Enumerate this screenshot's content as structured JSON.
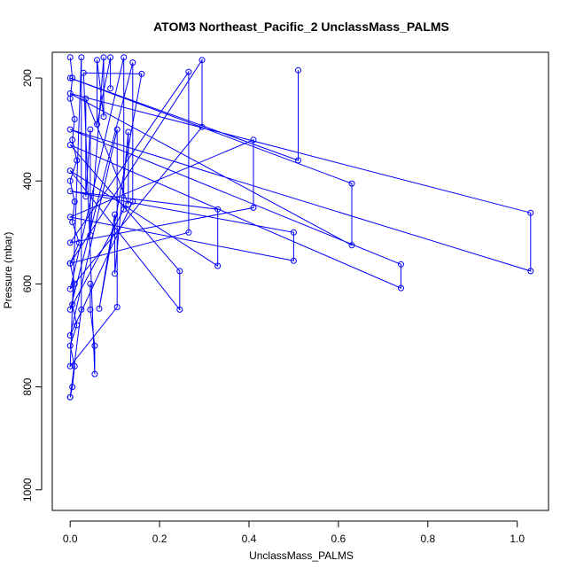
{
  "chart_data": {
    "type": "scatter",
    "title": "ATOM3 Northeast_Pacific_2 UnclassMass_PALMS",
    "xlabel": "UnclassMass_PALMS",
    "ylabel": "Pressure (mbar)",
    "xlim": [
      -0.04,
      1.07
    ],
    "ylim": [
      1040,
      150
    ],
    "y_reversed": true,
    "x_ticks": [
      0.0,
      0.2,
      0.4,
      0.6,
      0.8,
      1.0
    ],
    "x_tick_labels": [
      "0.0",
      "0.2",
      "0.4",
      "0.6",
      "0.8",
      "1.0"
    ],
    "y_ticks": [
      200,
      400,
      600,
      800,
      1000
    ],
    "y_tick_labels": [
      "200",
      "400",
      "600",
      "800",
      "1000"
    ],
    "grid": false,
    "legend": "none",
    "marker": "open-circle",
    "connect_points": true,
    "color": "#0000ff",
    "series": [
      {
        "points": [
          [
            0.51,
            185
          ],
          [
            0.51,
            360
          ],
          [
            0.0,
            200
          ],
          [
            0.63,
            405
          ],
          [
            0.63,
            525
          ],
          [
            0.0,
            230
          ],
          [
            1.03,
            462
          ],
          [
            1.03,
            575
          ],
          [
            0.0,
            300
          ],
          [
            0.74,
            562
          ],
          [
            0.74,
            608
          ],
          [
            0.0,
            330
          ],
          [
            0.245,
            575
          ],
          [
            0.245,
            650
          ],
          [
            0.0,
            380
          ],
          [
            0.33,
            565
          ],
          [
            0.33,
            455
          ],
          [
            0.0,
            420
          ],
          [
            0.5,
            500
          ],
          [
            0.5,
            555
          ],
          [
            0.0,
            470
          ],
          [
            0.41,
            320
          ],
          [
            0.41,
            452
          ],
          [
            0.0,
            520
          ],
          [
            0.265,
            188
          ],
          [
            0.265,
            500
          ],
          [
            0.0,
            560
          ],
          [
            0.295,
            165
          ],
          [
            0.295,
            295
          ],
          [
            0.0,
            610
          ],
          [
            0.12,
            160
          ],
          [
            0.12,
            455
          ],
          [
            0.0,
            650
          ],
          [
            0.14,
            170
          ],
          [
            0.14,
            440
          ],
          [
            0.0,
            700
          ],
          [
            0.105,
            300
          ],
          [
            0.105,
            645
          ],
          [
            0.0,
            760
          ],
          [
            0.025,
            160
          ],
          [
            0.025,
            650
          ],
          [
            0.0,
            820
          ]
        ]
      },
      {
        "points": [
          [
            0.0,
            160
          ],
          [
            0.005,
            200
          ],
          [
            0.0,
            240
          ],
          [
            0.01,
            280
          ],
          [
            0.005,
            320
          ],
          [
            0.015,
            360
          ],
          [
            0.0,
            400
          ],
          [
            0.01,
            440
          ],
          [
            0.005,
            480
          ],
          [
            0.02,
            520
          ],
          [
            0.0,
            560
          ],
          [
            0.01,
            600
          ],
          [
            0.005,
            640
          ],
          [
            0.015,
            680
          ],
          [
            0.0,
            720
          ],
          [
            0.01,
            760
          ],
          [
            0.005,
            800
          ],
          [
            0.0,
            820
          ]
        ]
      },
      {
        "points": [
          [
            0.045,
            600
          ],
          [
            0.045,
            650
          ],
          [
            0.055,
            720
          ],
          [
            0.055,
            775
          ],
          [
            0.03,
            190
          ],
          [
            0.16,
            192
          ],
          [
            0.065,
            648
          ],
          [
            0.1,
            465
          ],
          [
            0.1,
            580
          ],
          [
            0.13,
            305
          ],
          [
            0.13,
            445
          ],
          [
            0.035,
            240
          ],
          [
            0.035,
            430
          ],
          [
            0.045,
            300
          ],
          [
            0.045,
            505
          ],
          [
            0.075,
            160
          ],
          [
            0.075,
            275
          ],
          [
            0.06,
            165
          ],
          [
            0.06,
            290
          ],
          [
            0.09,
            160
          ],
          [
            0.09,
            220
          ]
        ]
      }
    ]
  }
}
